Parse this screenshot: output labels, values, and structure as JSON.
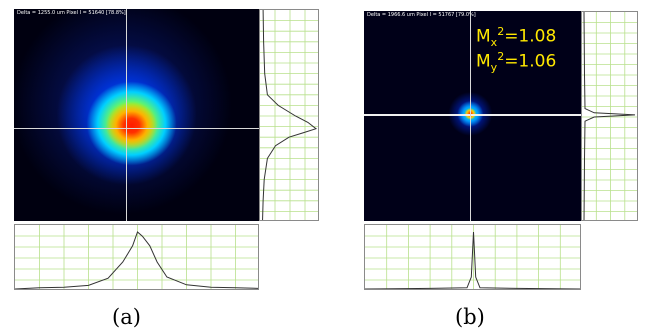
{
  "panel_a": {
    "readout": "Delta = 1255.0 um Pixel I = 51640 [78.8%]",
    "caption": "(a)",
    "horizontal_profile": [
      [
        0,
        0
      ],
      [
        0.1,
        0.02
      ],
      [
        0.2,
        0.03
      ],
      [
        0.3,
        0.06
      ],
      [
        0.38,
        0.18
      ],
      [
        0.44,
        0.45
      ],
      [
        0.48,
        0.72
      ],
      [
        0.5,
        0.95
      ],
      [
        0.52,
        0.88
      ],
      [
        0.55,
        0.72
      ],
      [
        0.58,
        0.45
      ],
      [
        0.62,
        0.2
      ],
      [
        0.7,
        0.07
      ],
      [
        0.8,
        0.03
      ],
      [
        0.9,
        0.02
      ],
      [
        1,
        0.01
      ]
    ],
    "vertical_profile": [
      [
        0,
        0.02
      ],
      [
        0.15,
        0.03
      ],
      [
        0.3,
        0.05
      ],
      [
        0.4,
        0.1
      ],
      [
        0.45,
        0.3
      ],
      [
        0.5,
        0.62
      ],
      [
        0.53,
        0.85
      ],
      [
        0.56,
        1.0
      ],
      [
        0.58,
        0.75
      ],
      [
        0.6,
        0.5
      ],
      [
        0.64,
        0.25
      ],
      [
        0.7,
        0.1
      ],
      [
        0.8,
        0.04
      ],
      [
        0.9,
        0.02
      ],
      [
        1,
        0.01
      ]
    ]
  },
  "panel_b": {
    "readout": "Delta = 1966.6 um Pixel I = 51767 [79.0%]",
    "caption": "(b)",
    "mx_label": "M",
    "mx_sub": "x",
    "mx_sup": "2",
    "mx_value": "=1.08",
    "my_label": "M",
    "my_sub": "y",
    "my_sup": "2",
    "my_value": "=1.06",
    "horizontal_profile": [
      [
        0,
        0
      ],
      [
        0.3,
        0.01
      ],
      [
        0.47,
        0.02
      ],
      [
        0.49,
        0.2
      ],
      [
        0.5,
        0.95
      ],
      [
        0.51,
        0.2
      ],
      [
        0.53,
        0.02
      ],
      [
        0.7,
        0.01
      ],
      [
        1,
        0
      ]
    ],
    "vertical_profile": [
      [
        0,
        0
      ],
      [
        0.3,
        0.01
      ],
      [
        0.46,
        0.02
      ],
      [
        0.48,
        0.2
      ],
      [
        0.49,
        1.0
      ],
      [
        0.5,
        0.2
      ],
      [
        0.52,
        0.02
      ],
      [
        0.7,
        0.01
      ],
      [
        1,
        0
      ]
    ]
  },
  "colors": {
    "grid_green": "#b8e08c",
    "trace": "#333333",
    "label_yellow": "#ffe800"
  }
}
